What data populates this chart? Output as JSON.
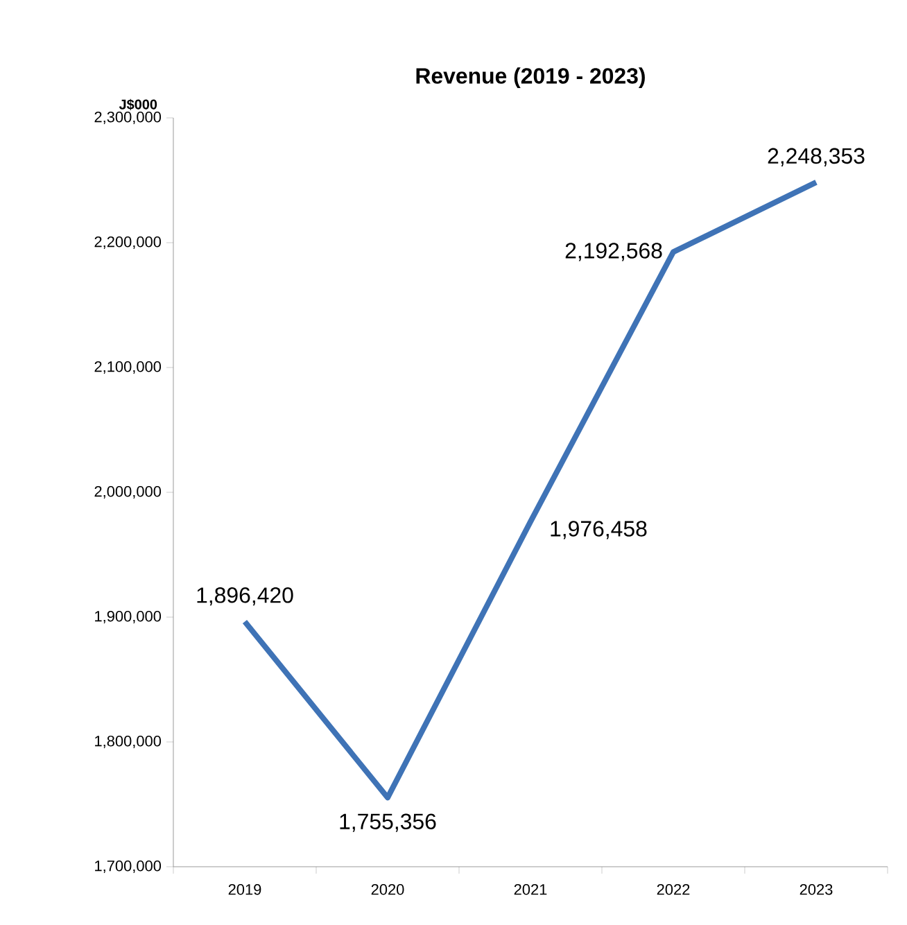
{
  "chart_data": {
    "type": "line",
    "title": "Revenue (2019 - 2023)",
    "ylabel": "J$000",
    "categories": [
      "2019",
      "2020",
      "2021",
      "2022",
      "2023"
    ],
    "series": [
      {
        "color": "#3f73b6",
        "values": [
          1896420,
          1755356,
          1976458,
          2192568,
          2248353
        ],
        "value_labels": [
          "1,896,420",
          "1,755,356",
          "1,976,458",
          "2,192,568",
          "2,248,353"
        ]
      }
    ],
    "ylim": [
      1700000,
      2300000
    ],
    "yticks": [
      {
        "value": 1700000,
        "label": "1,700,000"
      },
      {
        "value": 1800000,
        "label": "1,800,000"
      },
      {
        "value": 1900000,
        "label": "1,900,000"
      },
      {
        "value": 2000000,
        "label": "2,000,000"
      },
      {
        "value": 2100000,
        "label": "2,100,000"
      },
      {
        "value": 2200000,
        "label": "2,200,000"
      },
      {
        "value": 2300000,
        "label": "2,300,000"
      }
    ],
    "grid": false,
    "legend": false,
    "marker": "none",
    "line_style": "solid"
  }
}
